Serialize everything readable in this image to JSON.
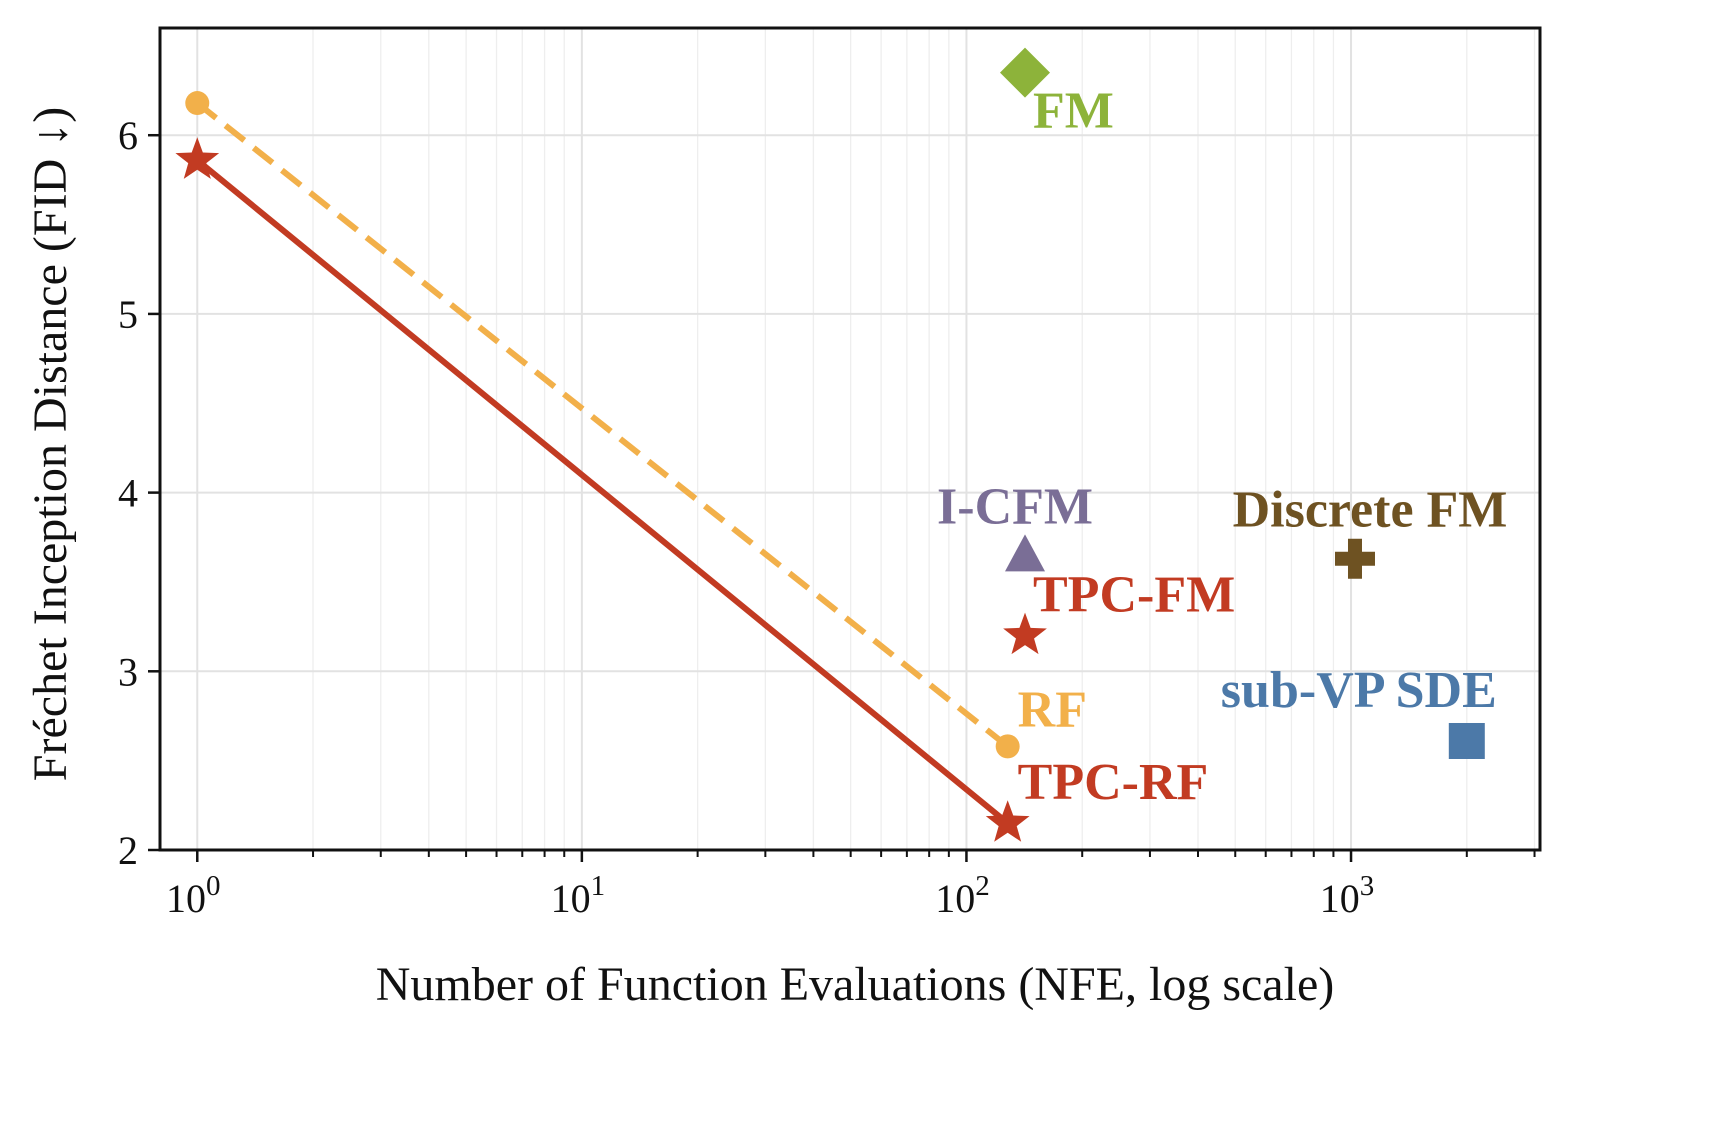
{
  "chart_data": {
    "type": "scatter",
    "title": "",
    "xlabel": "Number of Function Evaluations (NFE, log scale)",
    "ylabel": "Fréchet Inception Distance (FID ↓)",
    "xscale": "log",
    "xlim": [
      0.8,
      3100
    ],
    "ylim": [
      2,
      6.6
    ],
    "grid": true,
    "x_ticks": [
      1,
      10,
      100,
      1000
    ],
    "x_tick_labels": [
      {
        "base": "10",
        "exp": "0"
      },
      {
        "base": "10",
        "exp": "1"
      },
      {
        "base": "10",
        "exp": "2"
      },
      {
        "base": "10",
        "exp": "3"
      }
    ],
    "y_ticks": [
      2,
      3,
      4,
      5,
      6
    ],
    "y_tick_labels": [
      "2",
      "3",
      "4",
      "5",
      "6"
    ],
    "series": [
      {
        "name": "RF",
        "line": "dashed",
        "marker": "circle",
        "color": "#F2B04A",
        "points": [
          [
            1,
            6.18
          ],
          [
            128,
            2.58
          ]
        ]
      },
      {
        "name": "TPC-RF",
        "line": "solid",
        "marker": "star",
        "color": "#C23B22",
        "points": [
          [
            1,
            5.86
          ],
          [
            128,
            2.15
          ]
        ]
      }
    ],
    "points": [
      {
        "name": "FM",
        "x": 142,
        "y": 6.35,
        "marker": "diamond",
        "color": "#8DB33A"
      },
      {
        "name": "I-CFM",
        "x": 142,
        "y": 3.66,
        "marker": "triangle",
        "color": "#7A6E96"
      },
      {
        "name": "TPC-FM",
        "x": 142,
        "y": 3.2,
        "marker": "star",
        "color": "#C23B22"
      },
      {
        "name": "Discrete FM",
        "x": 1024,
        "y": 3.63,
        "marker": "plus",
        "color": "#6E5222"
      },
      {
        "name": "sub-VP SDE",
        "x": 2000,
        "y": 2.61,
        "marker": "square",
        "color": "#4C79A8"
      }
    ],
    "annotations": [
      {
        "text": "FM",
        "series": "FM",
        "color": "#8DB33A"
      },
      {
        "text": "I-CFM",
        "series": "I-CFM",
        "color": "#7A6E96"
      },
      {
        "text": "TPC-FM",
        "series": "TPC-FM",
        "color": "#C23B22"
      },
      {
        "text": "Discrete FM",
        "series": "Discrete FM",
        "color": "#6E5222"
      },
      {
        "text": "sub-VP SDE",
        "series": "sub-VP SDE",
        "color": "#4C79A8"
      },
      {
        "text": "RF",
        "series": "RF",
        "color": "#F2B04A"
      },
      {
        "text": "TPC-RF",
        "series": "TPC-RF",
        "color": "#C23B22"
      }
    ]
  }
}
